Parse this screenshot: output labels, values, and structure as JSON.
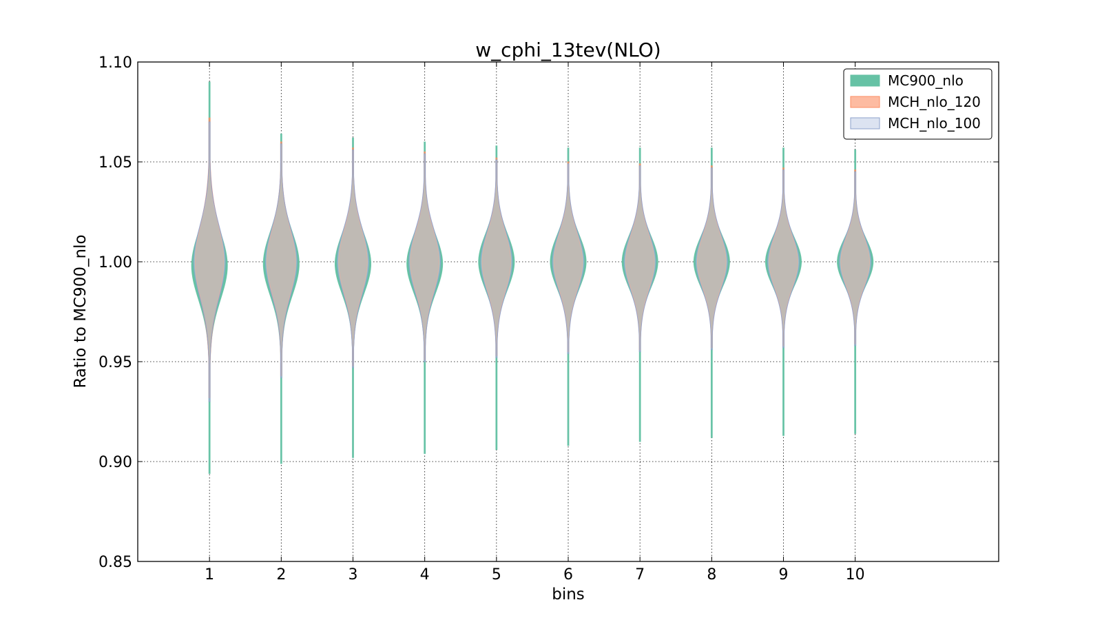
{
  "chart_data": {
    "type": "violin",
    "title": "w_cphi_13tev(NLO)",
    "xlabel": "bins",
    "ylabel": "Ratio to MC900_nlo",
    "xlim": [
      0,
      12
    ],
    "ylim": [
      0.85,
      1.1
    ],
    "x_ticks": [
      "1",
      "2",
      "3",
      "4",
      "5",
      "6",
      "7",
      "8",
      "9",
      "10"
    ],
    "y_ticks": [
      "0.85",
      "0.90",
      "0.95",
      "1.00",
      "1.05",
      "1.10"
    ],
    "grid": true,
    "legend_position": "top-right",
    "bins": [
      1,
      2,
      3,
      4,
      5,
      6,
      7,
      8,
      9,
      10
    ],
    "series": [
      {
        "name": "MC900_nlo",
        "color": "#66c2a5",
        "edge": "#66c2a5",
        "opacity": 1.0,
        "min": [
          0.894,
          0.899,
          0.902,
          0.904,
          0.906,
          0.908,
          0.91,
          0.912,
          0.913,
          0.914
        ],
        "max": [
          1.09,
          1.064,
          1.062,
          1.06,
          1.058,
          1.057,
          1.057,
          1.057,
          1.057,
          1.056
        ],
        "center": [
          0.998,
          0.999,
          0.999,
          0.999,
          1.0,
          1.0,
          1.0,
          1.0,
          1.0,
          1.0
        ],
        "sigma": [
          0.017,
          0.016,
          0.015,
          0.0145,
          0.014,
          0.0135,
          0.013,
          0.0125,
          0.012,
          0.0115
        ],
        "width": [
          0.25,
          0.25,
          0.25,
          0.25,
          0.25,
          0.25,
          0.25,
          0.25,
          0.25,
          0.25
        ]
      },
      {
        "name": "MCH_nlo_120",
        "color": "#fc8d62",
        "edge": "#fc8d62",
        "opacity": 0.55,
        "min": [
          0.932,
          0.943,
          0.948,
          0.951,
          0.953,
          0.955,
          0.956,
          0.957,
          0.958,
          0.959
        ],
        "max": [
          1.072,
          1.06,
          1.057,
          1.055,
          1.052,
          1.05,
          1.049,
          1.048,
          1.047,
          1.046
        ],
        "center": [
          1.0,
          1.0,
          1.0,
          1.0,
          1.0,
          1.0,
          1.0,
          1.0,
          1.0,
          1.0
        ],
        "sigma": [
          0.019,
          0.017,
          0.016,
          0.0155,
          0.015,
          0.0145,
          0.014,
          0.0135,
          0.013,
          0.0125
        ],
        "width": [
          0.2,
          0.2,
          0.2,
          0.2,
          0.2,
          0.2,
          0.2,
          0.2,
          0.2,
          0.2
        ]
      },
      {
        "name": "MCH_nlo_100",
        "color": "#c5d0e8",
        "edge": "#8da0cb",
        "opacity": 0.5,
        "min": [
          0.93,
          0.942,
          0.947,
          0.95,
          0.952,
          0.954,
          0.955,
          0.956,
          0.957,
          0.958
        ],
        "max": [
          1.07,
          1.059,
          1.056,
          1.054,
          1.051,
          1.049,
          1.048,
          1.047,
          1.046,
          1.045
        ],
        "center": [
          1.0,
          1.0,
          1.0,
          1.0,
          1.0,
          1.0,
          1.0,
          1.0,
          1.0,
          1.0
        ],
        "sigma": [
          0.018,
          0.0165,
          0.016,
          0.0155,
          0.015,
          0.0145,
          0.014,
          0.0135,
          0.013,
          0.0125
        ],
        "width": [
          0.22,
          0.22,
          0.22,
          0.22,
          0.22,
          0.22,
          0.22,
          0.22,
          0.22,
          0.22
        ]
      }
    ]
  }
}
